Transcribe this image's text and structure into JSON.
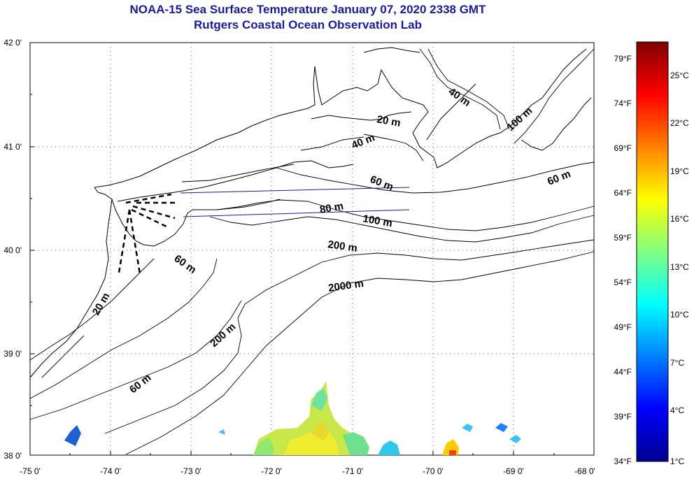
{
  "title": "NOAA-15 Sea Surface Temperature January 07, 2020 2338 GMT",
  "subtitle": "Rutgers Coastal Ocean Observation Lab",
  "map": {
    "lon_range": [
      -75,
      -68
    ],
    "lat_range": [
      38,
      42
    ],
    "lon_ticks": [
      "-75 0'",
      "-74 0'",
      "-73 0'",
      "-72 0'",
      "-71 0'",
      "-70 0'",
      "-69 0'",
      "-68 0'"
    ],
    "lat_ticks": [
      "42 0'",
      "41 0'",
      "40 0'",
      "39 0'",
      "38 0'"
    ],
    "grid": true,
    "contour_labels": [
      "40 m",
      "20 m",
      "40 m",
      "100 m",
      "60 m",
      "60 m",
      "80 m",
      "100 m",
      "200 m",
      "2000 m",
      "60 m",
      "20 m",
      "200 m",
      "60 m"
    ]
  },
  "colorbar": {
    "range_c": [
      1,
      27
    ],
    "fahrenheit_ticks": [
      "79°F",
      "74°F",
      "69°F",
      "64°F",
      "59°F",
      "54°F",
      "49°F",
      "44°F",
      "39°F",
      "34°F"
    ],
    "celsius_ticks": [
      "25°C",
      "22°C",
      "19°C",
      "16°C",
      "13°C",
      "10°C",
      "7°C",
      "4°C",
      "1°C"
    ],
    "colors": [
      "#00008f",
      "#0000ff",
      "#0080ff",
      "#00ffff",
      "#80ff80",
      "#ffff00",
      "#ff8000",
      "#ff0000",
      "#800000"
    ]
  }
}
